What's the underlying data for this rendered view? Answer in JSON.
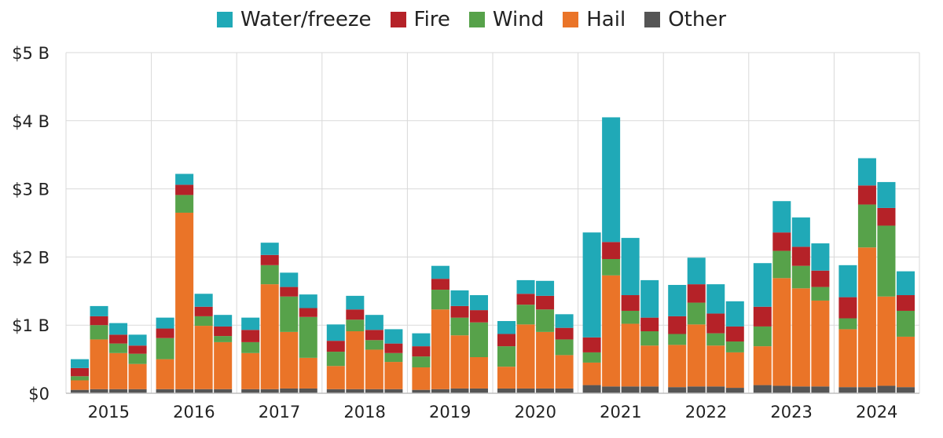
{
  "chart_data": {
    "type": "bar",
    "stacked": true,
    "title": "",
    "xlabel": "",
    "ylabel": "",
    "ylim": [
      0,
      5
    ],
    "y_ticks": [
      {
        "value": 0,
        "label": "$0"
      },
      {
        "value": 1,
        "label": "$1 B"
      },
      {
        "value": 2,
        "label": "$2 B"
      },
      {
        "value": 3,
        "label": "$3 B"
      },
      {
        "value": 4,
        "label": "$4 B"
      },
      {
        "value": 5,
        "label": "$5 B"
      }
    ],
    "grid": true,
    "legend_position": "top",
    "groups": [
      "2015",
      "2016",
      "2017",
      "2018",
      "2019",
      "2020",
      "2021",
      "2022",
      "2023",
      "2024"
    ],
    "bars_per_group": 4,
    "series": [
      {
        "name": "Other",
        "color": "#555555",
        "values": [
          0.05,
          0.06,
          0.06,
          0.06,
          0.06,
          0.06,
          0.06,
          0.06,
          0.06,
          0.06,
          0.07,
          0.07,
          0.06,
          0.06,
          0.06,
          0.06,
          0.05,
          0.06,
          0.07,
          0.07,
          0.07,
          0.07,
          0.07,
          0.07,
          0.12,
          0.1,
          0.1,
          0.1,
          0.09,
          0.1,
          0.1,
          0.08,
          0.12,
          0.11,
          0.1,
          0.1,
          0.09,
          0.09,
          0.11,
          0.09
        ]
      },
      {
        "name": "Hail",
        "color": "#ea7428",
        "values": [
          0.14,
          0.73,
          0.53,
          0.37,
          0.44,
          2.59,
          0.93,
          0.69,
          0.53,
          1.54,
          0.83,
          0.45,
          0.34,
          0.85,
          0.58,
          0.4,
          0.33,
          1.17,
          0.78,
          0.46,
          0.32,
          0.94,
          0.83,
          0.49,
          0.33,
          1.63,
          0.92,
          0.6,
          0.62,
          0.91,
          0.6,
          0.52,
          0.57,
          1.58,
          1.44,
          1.26,
          0.85,
          2.05,
          1.31,
          0.74
        ]
      },
      {
        "name": "Wind",
        "color": "#57a24a",
        "values": [
          0.06,
          0.21,
          0.14,
          0.15,
          0.31,
          0.26,
          0.14,
          0.09,
          0.16,
          0.28,
          0.52,
          0.6,
          0.21,
          0.17,
          0.14,
          0.13,
          0.16,
          0.29,
          0.26,
          0.51,
          0.3,
          0.29,
          0.33,
          0.23,
          0.15,
          0.24,
          0.19,
          0.21,
          0.16,
          0.32,
          0.18,
          0.16,
          0.29,
          0.4,
          0.33,
          0.2,
          0.16,
          0.63,
          1.04,
          0.38
        ]
      },
      {
        "name": "Fire",
        "color": "#b52228",
        "values": [
          0.12,
          0.13,
          0.13,
          0.12,
          0.14,
          0.15,
          0.14,
          0.14,
          0.18,
          0.15,
          0.14,
          0.13,
          0.16,
          0.15,
          0.15,
          0.14,
          0.15,
          0.16,
          0.17,
          0.18,
          0.18,
          0.16,
          0.2,
          0.17,
          0.22,
          0.25,
          0.23,
          0.2,
          0.26,
          0.27,
          0.29,
          0.22,
          0.29,
          0.27,
          0.28,
          0.24,
          0.31,
          0.28,
          0.26,
          0.23
        ]
      },
      {
        "name": "Water/freeze",
        "color": "#20a9b7",
        "values": [
          0.13,
          0.15,
          0.17,
          0.16,
          0.16,
          0.16,
          0.19,
          0.17,
          0.18,
          0.18,
          0.21,
          0.2,
          0.24,
          0.2,
          0.22,
          0.21,
          0.19,
          0.19,
          0.23,
          0.22,
          0.19,
          0.2,
          0.22,
          0.2,
          1.54,
          1.83,
          0.84,
          0.55,
          0.46,
          0.39,
          0.43,
          0.37,
          0.64,
          0.46,
          0.43,
          0.4,
          0.47,
          0.4,
          0.38,
          0.35
        ]
      }
    ]
  },
  "legend_order": [
    "Water/freeze",
    "Fire",
    "Wind",
    "Hail",
    "Other"
  ]
}
